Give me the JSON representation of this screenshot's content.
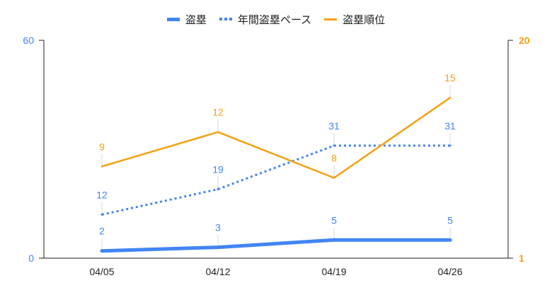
{
  "chart_data": {
    "type": "line",
    "categories": [
      "04/05",
      "04/12",
      "04/19",
      "04/26"
    ],
    "series": [
      {
        "name": "盗塁",
        "values": [
          2,
          3,
          5,
          5
        ],
        "axis": "left",
        "color": "#4285F4",
        "line_style": "solid-thick"
      },
      {
        "name": "年間盗塁ペース",
        "values": [
          12,
          19,
          31,
          31
        ],
        "axis": "left",
        "color": "#4285F4",
        "line_style": "dotted"
      },
      {
        "name": "盗塁順位",
        "values": [
          9,
          12,
          8,
          15
        ],
        "axis": "right",
        "color": "#F5A00F",
        "line_style": "solid"
      }
    ],
    "y_left": {
      "min": 0,
      "max": 60,
      "ticks": [
        0,
        60
      ],
      "color": "#4285F4"
    },
    "y_right": {
      "min": 1,
      "max": 20,
      "ticks": [
        1,
        20
      ],
      "color": "#F5A00F"
    },
    "legend": "top-center",
    "grid": false,
    "data_labels": true
  }
}
